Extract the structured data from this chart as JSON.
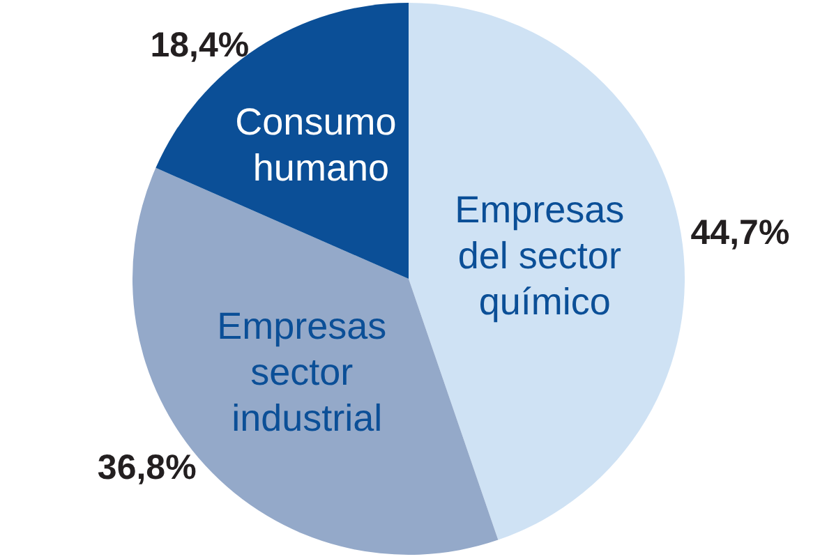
{
  "chart_data": {
    "type": "pie",
    "categories": [
      "Empresas del sector químico",
      "Empresas sector industrial",
      "Consumo humano"
    ],
    "values": [
      44.7,
      36.8,
      18.4
    ],
    "colors": [
      "#cfe2f4",
      "#94a9c9",
      "#0b4f97"
    ],
    "value_labels": [
      "44,7%",
      "36,8%",
      "18,4%"
    ],
    "legend": false
  }
}
